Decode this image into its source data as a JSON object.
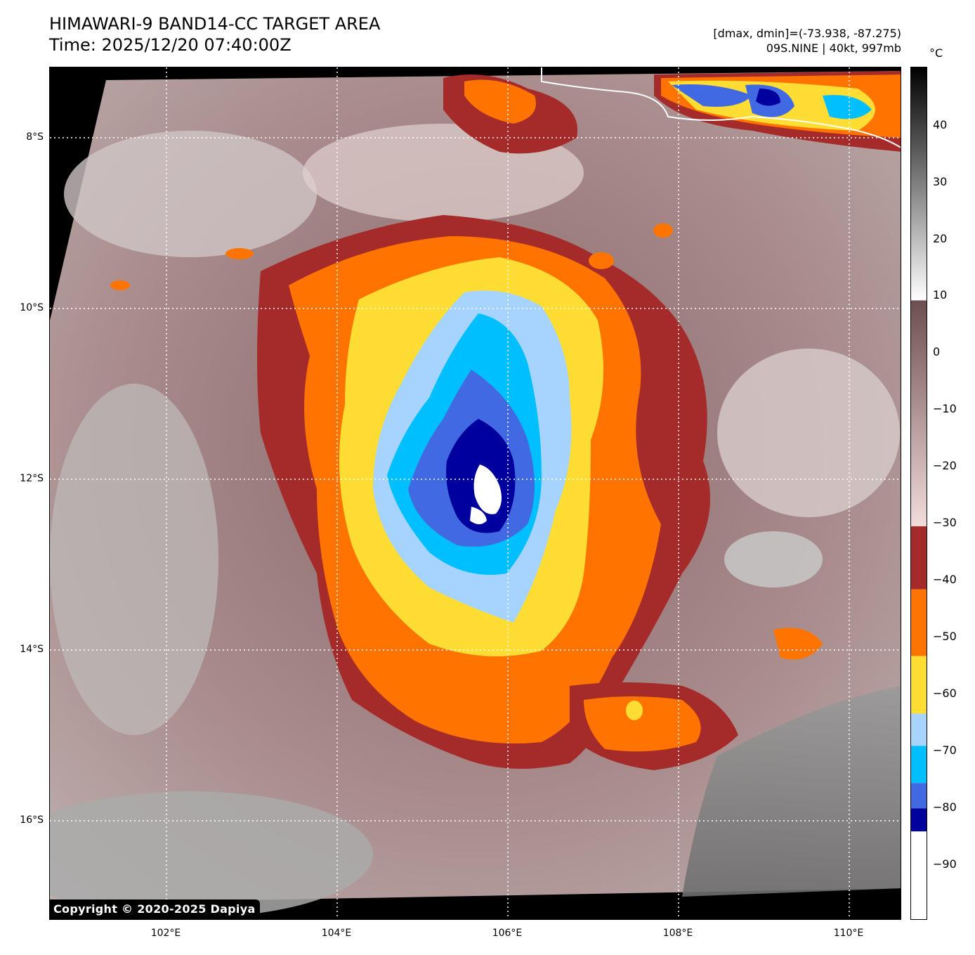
{
  "header": {
    "title_line1": "HIMAWARI-9 BAND14-CC TARGET AREA",
    "title_line2": "Time: 2025/12/20 07:40:00Z",
    "meta_line1": "[dmax, dmin]=(-73.938, -87.275)",
    "meta_line2": "09S.NINE | 40kt, 997mb"
  },
  "map": {
    "lat_labels": [
      "8°S",
      "10°S",
      "12°S",
      "14°S",
      "16°S"
    ],
    "lon_labels": [
      "102°E",
      "104°E",
      "106°E",
      "108°E",
      "110°E"
    ],
    "copyright": "Copyright © 2020-2025 Dapiya",
    "background_color": "#b09090",
    "grid_color": "#ffffff"
  },
  "colorbar": {
    "unit": "°C",
    "tick_labels": [
      "40",
      "30",
      "20",
      "10",
      "0",
      "−10",
      "−20",
      "−30",
      "−40",
      "−50",
      "−60",
      "−70",
      "−80",
      "−90"
    ],
    "colors": {
      "darkred": "#a52a2a",
      "orange": "#ff7400",
      "yellow": "#ffdd33",
      "lightblue": "#a6d4ff",
      "skyblue": "#00bfff",
      "royalblue": "#4169e1",
      "navy": "#00009f",
      "white": "#ffffff"
    }
  }
}
